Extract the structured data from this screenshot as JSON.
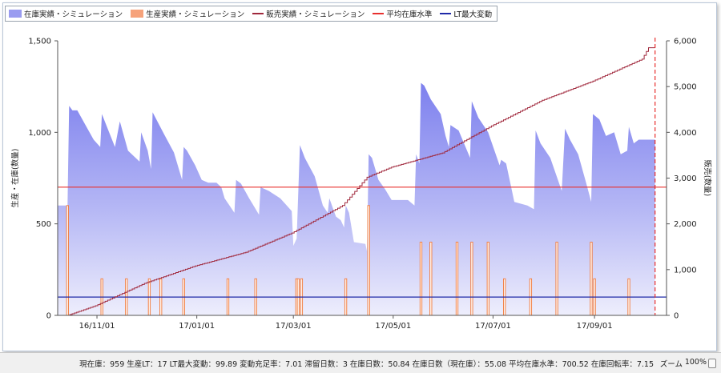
{
  "legend": [
    {
      "label": "在庫実績・シミュレーション",
      "swatch": "fill",
      "color": "#9a9cf0"
    },
    {
      "label": "生産実績・シミュレーション",
      "swatch": "fill",
      "color": "#f6a27a"
    },
    {
      "label": "販売実績・シミュレーション",
      "swatch": "line",
      "color": "#a0283c"
    },
    {
      "label": "平均在庫水準",
      "swatch": "line",
      "color": "#e8302e"
    },
    {
      "label": "LT最大変動",
      "swatch": "line",
      "color": "#1f2aa8"
    }
  ],
  "status": {
    "text": "現在庫：959 生産LT：17 LT最大変動：99.89 変動充足率：7.01 滞留日数：3 在庫日数：50.84 在庫日数（現在庫）：55.08 平均在庫水準：700.52 在庫回転率：7.15",
    "zoom_label": "ズーム",
    "zoom_value": "100%"
  },
  "chart_data": {
    "type": "area",
    "ylabel": "生産・在庫(数量)",
    "ylabel_right": "販売(数量)",
    "ylim": [
      0,
      1500
    ],
    "ylim_right": [
      0,
      6000
    ],
    "yticks": [
      "0",
      "500",
      "1,000",
      "1,500"
    ],
    "yticks_right": [
      "0",
      "1,000",
      "2,000",
      "3,000",
      "4,000",
      "5,000",
      "6,000"
    ],
    "xlim": [
      "2016-10-08",
      "2017-10-15"
    ],
    "xticks": [
      {
        "date": "2016-11-01",
        "label": "16/11/01"
      },
      {
        "date": "2017-01-01",
        "label": "17/01/01"
      },
      {
        "date": "2017-03-01",
        "label": "17/03/01"
      },
      {
        "date": "2017-05-01",
        "label": "17/05/01"
      },
      {
        "date": "2017-07-01",
        "label": "17/07/01"
      },
      {
        "date": "2017-09-01",
        "label": "17/09/01"
      }
    ],
    "current_date": "2017-10-08",
    "inventory": {
      "name": "在庫実績・シミュレーション",
      "points": [
        [
          "2016-10-08",
          600
        ],
        [
          "2016-10-14",
          600
        ],
        [
          "2016-10-15",
          1145
        ],
        [
          "2016-10-17",
          1120
        ],
        [
          "2016-10-20",
          1120
        ],
        [
          "2016-10-25",
          1040
        ],
        [
          "2016-10-30",
          960
        ],
        [
          "2016-11-03",
          920
        ],
        [
          "2016-11-04",
          1100
        ],
        [
          "2016-11-08",
          1010
        ],
        [
          "2016-11-12",
          920
        ],
        [
          "2016-11-15",
          1060
        ],
        [
          "2016-11-20",
          900
        ],
        [
          "2016-11-27",
          840
        ],
        [
          "2016-11-28",
          1000
        ],
        [
          "2016-12-02",
          900
        ],
        [
          "2016-12-04",
          800
        ],
        [
          "2016-12-05",
          1110
        ],
        [
          "2016-12-12",
          990
        ],
        [
          "2016-12-18",
          890
        ],
        [
          "2016-12-23",
          740
        ],
        [
          "2016-12-24",
          920
        ],
        [
          "2016-12-26",
          900
        ],
        [
          "2016-12-31",
          820
        ],
        [
          "2017-01-04",
          740
        ],
        [
          "2017-01-08",
          725
        ],
        [
          "2017-01-13",
          725
        ],
        [
          "2017-01-16",
          700
        ],
        [
          "2017-01-18",
          640
        ],
        [
          "2017-01-21",
          600
        ],
        [
          "2017-01-24",
          560
        ],
        [
          "2017-01-25",
          740
        ],
        [
          "2017-01-28",
          720
        ],
        [
          "2017-02-02",
          640
        ],
        [
          "2017-02-08",
          550
        ],
        [
          "2017-02-09",
          700
        ],
        [
          "2017-02-14",
          680
        ],
        [
          "2017-02-21",
          640
        ],
        [
          "2017-02-28",
          570
        ],
        [
          "2017-03-01",
          380
        ],
        [
          "2017-03-03",
          420
        ],
        [
          "2017-03-05",
          930
        ],
        [
          "2017-03-08",
          860
        ],
        [
          "2017-03-14",
          760
        ],
        [
          "2017-03-19",
          600
        ],
        [
          "2017-03-22",
          560
        ],
        [
          "2017-03-23",
          640
        ],
        [
          "2017-03-27",
          540
        ],
        [
          "2017-03-30",
          520
        ],
        [
          "2017-04-01",
          480
        ],
        [
          "2017-04-02",
          600
        ],
        [
          "2017-04-04",
          560
        ],
        [
          "2017-04-07",
          400
        ],
        [
          "2017-04-14",
          390
        ],
        [
          "2017-04-15",
          350
        ],
        [
          "2017-04-16",
          880
        ],
        [
          "2017-04-18",
          860
        ],
        [
          "2017-04-22",
          740
        ],
        [
          "2017-04-26",
          690
        ],
        [
          "2017-04-30",
          630
        ],
        [
          "2017-05-10",
          630
        ],
        [
          "2017-05-14",
          600
        ],
        [
          "2017-05-15",
          880
        ],
        [
          "2017-05-17",
          830
        ],
        [
          "2017-05-18",
          1270
        ],
        [
          "2017-05-20",
          1255
        ],
        [
          "2017-05-24",
          1180
        ],
        [
          "2017-05-30",
          1100
        ],
        [
          "2017-06-02",
          980
        ],
        [
          "2017-06-04",
          920
        ],
        [
          "2017-06-05",
          1040
        ],
        [
          "2017-06-10",
          1010
        ],
        [
          "2017-06-17",
          860
        ],
        [
          "2017-06-18",
          1170
        ],
        [
          "2017-06-22",
          1080
        ],
        [
          "2017-06-28",
          1000
        ],
        [
          "2017-07-05",
          820
        ],
        [
          "2017-07-06",
          850
        ],
        [
          "2017-07-09",
          830
        ],
        [
          "2017-07-14",
          620
        ],
        [
          "2017-07-22",
          600
        ],
        [
          "2017-07-26",
          580
        ],
        [
          "2017-07-27",
          1010
        ],
        [
          "2017-07-30",
          940
        ],
        [
          "2017-08-05",
          860
        ],
        [
          "2017-08-12",
          680
        ],
        [
          "2017-08-14",
          1020
        ],
        [
          "2017-08-17",
          960
        ],
        [
          "2017-08-22",
          880
        ],
        [
          "2017-08-27",
          720
        ],
        [
          "2017-08-30",
          620
        ],
        [
          "2017-08-31",
          1100
        ],
        [
          "2017-09-04",
          1070
        ],
        [
          "2017-09-08",
          980
        ],
        [
          "2017-09-13",
          1000
        ],
        [
          "2017-09-17",
          880
        ],
        [
          "2017-09-21",
          900
        ],
        [
          "2017-09-22",
          1030
        ],
        [
          "2017-09-25",
          940
        ],
        [
          "2017-09-28",
          960
        ],
        [
          "2017-10-08",
          960
        ]
      ]
    },
    "production": {
      "name": "生産実績・シミュレーション",
      "bars": [
        [
          "2016-10-14",
          600
        ],
        [
          "2016-11-04",
          200
        ],
        [
          "2016-11-19",
          200
        ],
        [
          "2016-12-03",
          200
        ],
        [
          "2016-12-10",
          200
        ],
        [
          "2016-12-24",
          200
        ],
        [
          "2017-01-20",
          200
        ],
        [
          "2017-02-06",
          200
        ],
        [
          "2017-03-03",
          200
        ],
        [
          "2017-03-04",
          200
        ],
        [
          "2017-03-06",
          200
        ],
        [
          "2017-04-02",
          200
        ],
        [
          "2017-04-16",
          600
        ],
        [
          "2017-05-18",
          400
        ],
        [
          "2017-05-24",
          400
        ],
        [
          "2017-06-09",
          400
        ],
        [
          "2017-06-18",
          400
        ],
        [
          "2017-06-28",
          400
        ],
        [
          "2017-07-08",
          200
        ],
        [
          "2017-07-24",
          200
        ],
        [
          "2017-08-09",
          400
        ],
        [
          "2017-08-30",
          400
        ],
        [
          "2017-09-01",
          200
        ],
        [
          "2017-09-22",
          200
        ]
      ]
    },
    "sales": {
      "name": "販売実績・シミュレーション",
      "cumulative": [
        [
          "2016-10-14",
          0
        ],
        [
          "2016-10-31",
          210
        ],
        [
          "2016-11-30",
          700
        ],
        [
          "2016-12-31",
          1080
        ],
        [
          "2017-01-31",
          1380
        ],
        [
          "2017-02-28",
          1800
        ],
        [
          "2017-03-31",
          2400
        ],
        [
          "2017-04-15",
          3020
        ],
        [
          "2017-04-30",
          3240
        ],
        [
          "2017-05-31",
          3550
        ],
        [
          "2017-06-30",
          4140
        ],
        [
          "2017-07-31",
          4700
        ],
        [
          "2017-08-31",
          5120
        ],
        [
          "2017-09-30",
          5600
        ],
        [
          "2017-10-04",
          5850
        ],
        [
          "2017-10-08",
          5850
        ]
      ]
    },
    "average_inventory": {
      "name": "平均在庫水準",
      "value": 700.52
    },
    "lt_max_variation": {
      "name": "LT最大変動",
      "value": 99.89
    }
  }
}
